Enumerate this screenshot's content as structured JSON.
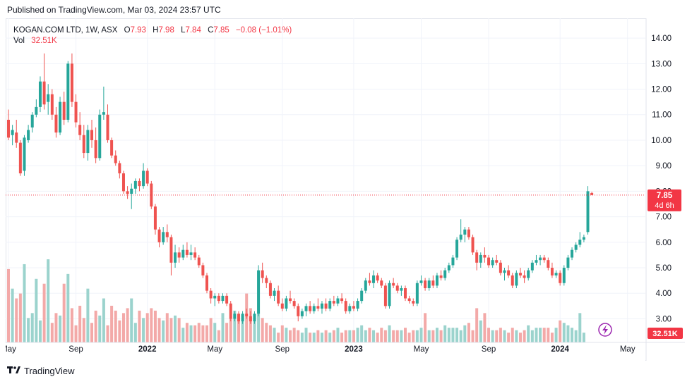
{
  "published": "Published on TradingView.com, Mar 03, 2024 23:57 UTC",
  "legend": {
    "symbol": "KOGAN.COM LTD, 1W, ASX",
    "o_label": "O",
    "o": "7.93",
    "h_label": "H",
    "h": "7.98",
    "l_label": "L",
    "l": "7.84",
    "c_label": "C",
    "c": "7.85",
    "change": "−0.08 (−1.01%)",
    "vol_label": "Vol",
    "vol": "32.51K"
  },
  "price_label": {
    "price": "7.85",
    "countdown": "4d 6h"
  },
  "volume_label": "32.51K",
  "footer": {
    "brand": "TradingView"
  },
  "colors": {
    "up": "#26a69a",
    "down": "#ef5350",
    "up_vol": "#9bd3cd",
    "down_vol": "#f3a9a8",
    "grid": "#f0f3fa"
  },
  "chart_data": {
    "type": "candlestick",
    "interval": "1W",
    "ylim": [
      2.35,
      14.5
    ],
    "y_ticks": [
      "3.00",
      "4.00",
      "5.00",
      "6.00",
      "7.00",
      "8.00",
      "9.00",
      "10.00",
      "11.00",
      "12.00",
      "13.00",
      "14.00"
    ],
    "x_ticks": [
      "May",
      "Sep",
      "2022",
      "May",
      "Sep",
      "2023",
      "May",
      "Sep",
      "2024",
      "May"
    ],
    "x_tick_bold": [
      false,
      false,
      true,
      false,
      false,
      true,
      false,
      false,
      true,
      false
    ],
    "x_tick_week_index": [
      0,
      17,
      35,
      52,
      69,
      87,
      104,
      121,
      139,
      156
    ],
    "last_price": 7.85,
    "candles": [
      [
        10.8,
        11.2,
        10.0,
        10.1
      ],
      [
        10.2,
        10.6,
        9.8,
        10.4
      ],
      [
        10.3,
        10.8,
        9.7,
        9.9
      ],
      [
        9.9,
        10.0,
        8.6,
        8.7
      ],
      [
        8.8,
        10.2,
        8.6,
        10.1
      ],
      [
        10.0,
        10.6,
        9.9,
        10.4
      ],
      [
        10.5,
        11.1,
        10.3,
        11.0
      ],
      [
        11.0,
        11.6,
        10.9,
        11.3
      ],
      [
        11.3,
        12.5,
        11.1,
        12.3
      ],
      [
        12.3,
        13.4,
        11.2,
        11.4
      ],
      [
        11.5,
        12.2,
        11.0,
        11.8
      ],
      [
        11.8,
        12.0,
        10.8,
        11.0
      ],
      [
        11.0,
        11.3,
        10.1,
        10.3
      ],
      [
        10.3,
        11.7,
        10.2,
        11.5
      ],
      [
        11.5,
        11.9,
        10.6,
        10.8
      ],
      [
        10.8,
        13.1,
        10.7,
        13.0
      ],
      [
        13.0,
        13.4,
        11.3,
        11.5
      ],
      [
        11.5,
        11.8,
        10.5,
        10.7
      ],
      [
        10.6,
        11.1,
        10.0,
        10.2
      ],
      [
        10.2,
        10.6,
        9.3,
        9.5
      ],
      [
        9.5,
        10.6,
        9.2,
        10.4
      ],
      [
        10.4,
        10.8,
        9.7,
        10.0
      ],
      [
        10.0,
        10.5,
        9.1,
        9.3
      ],
      [
        9.3,
        11.2,
        9.2,
        11.0
      ],
      [
        11.0,
        12.1,
        10.8,
        11.1
      ],
      [
        11.0,
        11.4,
        9.9,
        10.0
      ],
      [
        10.0,
        10.1,
        9.3,
        9.4
      ],
      [
        9.4,
        9.6,
        9.0,
        9.1
      ],
      [
        9.1,
        9.2,
        8.5,
        8.7
      ],
      [
        8.7,
        8.8,
        7.9,
        8.0
      ],
      [
        8.0,
        8.2,
        7.7,
        7.9
      ],
      [
        7.9,
        8.3,
        7.3,
        8.1
      ],
      [
        8.1,
        8.5,
        7.9,
        8.4
      ],
      [
        8.4,
        8.5,
        8.0,
        8.2
      ],
      [
        8.2,
        9.1,
        8.1,
        8.8
      ],
      [
        8.8,
        8.9,
        8.2,
        8.3
      ],
      [
        8.3,
        8.4,
        7.3,
        7.4
      ],
      [
        7.4,
        7.5,
        6.3,
        6.5
      ],
      [
        6.5,
        6.6,
        5.8,
        6.0
      ],
      [
        6.0,
        6.6,
        5.9,
        6.4
      ],
      [
        6.4,
        6.7,
        6.0,
        6.2
      ],
      [
        6.2,
        6.3,
        4.7,
        5.2
      ],
      [
        5.2,
        5.9,
        5.0,
        5.6
      ],
      [
        5.6,
        5.8,
        5.2,
        5.4
      ],
      [
        5.4,
        5.9,
        5.3,
        5.7
      ],
      [
        5.7,
        6.0,
        5.4,
        5.5
      ],
      [
        5.5,
        5.9,
        5.3,
        5.6
      ],
      [
        5.6,
        5.8,
        5.3,
        5.4
      ],
      [
        5.4,
        5.5,
        5.0,
        5.1
      ],
      [
        5.1,
        5.2,
        4.6,
        4.7
      ],
      [
        4.7,
        4.8,
        4.0,
        4.1
      ],
      [
        4.1,
        4.2,
        3.6,
        3.8
      ],
      [
        3.8,
        4.0,
        3.5,
        3.9
      ],
      [
        3.9,
        4.0,
        3.6,
        3.7
      ],
      [
        3.7,
        4.0,
        3.6,
        3.9
      ],
      [
        3.9,
        4.0,
        3.5,
        3.6
      ],
      [
        3.6,
        3.7,
        2.9,
        3.0
      ],
      [
        3.0,
        3.3,
        2.9,
        3.2
      ],
      [
        3.2,
        3.3,
        2.8,
        2.9
      ],
      [
        2.9,
        3.3,
        2.8,
        3.2
      ],
      [
        3.2,
        3.4,
        3.0,
        3.1
      ],
      [
        3.1,
        3.3,
        2.8,
        2.9
      ],
      [
        2.9,
        3.3,
        2.8,
        3.2
      ],
      [
        3.2,
        5.1,
        3.1,
        4.9
      ],
      [
        4.9,
        5.2,
        4.4,
        4.6
      ],
      [
        4.6,
        4.7,
        4.2,
        4.4
      ],
      [
        4.4,
        4.5,
        3.8,
        3.9
      ],
      [
        3.9,
        4.2,
        3.7,
        4.1
      ],
      [
        4.1,
        4.3,
        3.5,
        3.6
      ],
      [
        3.6,
        3.8,
        3.3,
        3.4
      ],
      [
        3.4,
        3.9,
        3.3,
        3.8
      ],
      [
        3.8,
        4.1,
        3.6,
        3.7
      ],
      [
        3.7,
        3.8,
        3.4,
        3.5
      ],
      [
        3.5,
        3.6,
        2.9,
        3.1
      ],
      [
        3.1,
        3.4,
        3.0,
        3.3
      ],
      [
        3.3,
        3.6,
        3.1,
        3.5
      ],
      [
        3.5,
        3.7,
        3.2,
        3.3
      ],
      [
        3.3,
        3.6,
        3.2,
        3.5
      ],
      [
        3.5,
        3.8,
        3.3,
        3.4
      ],
      [
        3.4,
        3.7,
        3.2,
        3.6
      ],
      [
        3.6,
        3.8,
        3.3,
        3.4
      ],
      [
        3.4,
        3.8,
        3.3,
        3.7
      ],
      [
        3.7,
        3.9,
        3.5,
        3.6
      ],
      [
        3.6,
        3.9,
        3.5,
        3.8
      ],
      [
        3.8,
        4.0,
        3.6,
        3.7
      ],
      [
        3.7,
        3.8,
        3.2,
        3.3
      ],
      [
        3.3,
        3.6,
        3.2,
        3.5
      ],
      [
        3.5,
        3.7,
        3.3,
        3.4
      ],
      [
        3.4,
        3.8,
        3.3,
        3.7
      ],
      [
        3.7,
        4.2,
        3.6,
        4.1
      ],
      [
        4.1,
        4.6,
        4.0,
        4.5
      ],
      [
        4.5,
        4.8,
        4.3,
        4.4
      ],
      [
        4.4,
        4.9,
        4.2,
        4.7
      ],
      [
        4.7,
        4.8,
        4.4,
        4.5
      ],
      [
        4.5,
        4.6,
        4.2,
        4.3
      ],
      [
        4.3,
        4.4,
        3.4,
        3.5
      ],
      [
        3.5,
        4.5,
        3.4,
        4.4
      ],
      [
        4.4,
        4.6,
        4.2,
        4.3
      ],
      [
        4.3,
        4.4,
        4.0,
        4.1
      ],
      [
        4.1,
        4.3,
        3.9,
        4.2
      ],
      [
        4.2,
        4.3,
        3.7,
        3.8
      ],
      [
        3.8,
        3.9,
        3.6,
        3.7
      ],
      [
        3.7,
        3.8,
        3.5,
        3.6
      ],
      [
        3.6,
        4.5,
        3.5,
        4.4
      ],
      [
        4.4,
        4.7,
        4.3,
        4.5
      ],
      [
        4.5,
        4.6,
        4.1,
        4.2
      ],
      [
        4.2,
        4.6,
        4.1,
        4.5
      ],
      [
        4.5,
        4.7,
        4.2,
        4.3
      ],
      [
        4.3,
        4.8,
        4.2,
        4.7
      ],
      [
        4.7,
        4.9,
        4.5,
        4.6
      ],
      [
        4.6,
        5.0,
        4.5,
        4.9
      ],
      [
        4.9,
        5.2,
        4.8,
        5.1
      ],
      [
        5.1,
        5.5,
        5.0,
        5.4
      ],
      [
        5.4,
        6.2,
        5.3,
        6.1
      ],
      [
        6.1,
        6.9,
        6.0,
        6.3
      ],
      [
        6.3,
        6.6,
        6.0,
        6.5
      ],
      [
        6.5,
        6.6,
        6.1,
        6.2
      ],
      [
        6.2,
        6.3,
        5.5,
        5.6
      ],
      [
        5.6,
        5.7,
        4.9,
        5.2
      ],
      [
        5.2,
        5.6,
        5.0,
        5.5
      ],
      [
        5.5,
        5.8,
        5.2,
        5.4
      ],
      [
        5.4,
        5.5,
        5.0,
        5.1
      ],
      [
        5.1,
        5.4,
        5.0,
        5.3
      ],
      [
        5.3,
        5.5,
        5.1,
        5.2
      ],
      [
        5.2,
        5.3,
        4.7,
        4.8
      ],
      [
        4.8,
        5.0,
        4.5,
        4.9
      ],
      [
        4.9,
        5.1,
        4.6,
        4.7
      ],
      [
        4.7,
        4.8,
        4.2,
        4.3
      ],
      [
        4.3,
        4.9,
        4.2,
        4.8
      ],
      [
        4.8,
        5.0,
        4.6,
        4.7
      ],
      [
        4.7,
        4.9,
        4.4,
        4.6
      ],
      [
        4.6,
        5.0,
        4.5,
        4.9
      ],
      [
        4.9,
        5.3,
        4.8,
        5.2
      ],
      [
        5.2,
        5.5,
        5.1,
        5.3
      ],
      [
        5.3,
        5.5,
        5.1,
        5.4
      ],
      [
        5.4,
        5.5,
        5.2,
        5.3
      ],
      [
        5.3,
        5.4,
        4.9,
        5.0
      ],
      [
        5.0,
        5.2,
        4.6,
        4.7
      ],
      [
        4.7,
        4.9,
        4.6,
        4.8
      ],
      [
        4.8,
        4.9,
        4.3,
        4.4
      ],
      [
        4.4,
        5.1,
        4.3,
        5.0
      ],
      [
        5.0,
        5.5,
        4.9,
        5.4
      ],
      [
        5.4,
        5.8,
        5.3,
        5.7
      ],
      [
        5.7,
        6.0,
        5.6,
        5.9
      ],
      [
        5.9,
        6.4,
        5.8,
        6.1
      ],
      [
        6.1,
        6.3,
        6.0,
        6.2
      ],
      [
        6.4,
        8.2,
        6.3,
        8.0
      ],
      [
        7.93,
        7.98,
        7.84,
        7.85
      ]
    ],
    "volumes": [
      30,
      22,
      18,
      20,
      32,
      10,
      12,
      26,
      9,
      24,
      34,
      8,
      12,
      11,
      24,
      28,
      14,
      7,
      15,
      10,
      22,
      8,
      13,
      11,
      18,
      7,
      15,
      13,
      9,
      12,
      14,
      18,
      8,
      13,
      10,
      12,
      14,
      13,
      10,
      9,
      12,
      10,
      11,
      10,
      6,
      8,
      7,
      7,
      8,
      7,
      7,
      10,
      8,
      5,
      12,
      8,
      10,
      13,
      9,
      11,
      20,
      14,
      9,
      12,
      10,
      8,
      7,
      6,
      4,
      7,
      6,
      5,
      6,
      5,
      4,
      6,
      4,
      4,
      5,
      4,
      5,
      4,
      5,
      6,
      4,
      5,
      5,
      5,
      6,
      7,
      5,
      6,
      5,
      4,
      6,
      5,
      7,
      5,
      5,
      5,
      6,
      4,
      5,
      5,
      6,
      12,
      5,
      5,
      6,
      5,
      7,
      6,
      6,
      6,
      5,
      7,
      8,
      5,
      14,
      9,
      12,
      6,
      5,
      5,
      6,
      5,
      4,
      6,
      5,
      4,
      5,
      7,
      5,
      6,
      6,
      6,
      6,
      4,
      6,
      9,
      8,
      7,
      6,
      5,
      12,
      4
    ]
  }
}
